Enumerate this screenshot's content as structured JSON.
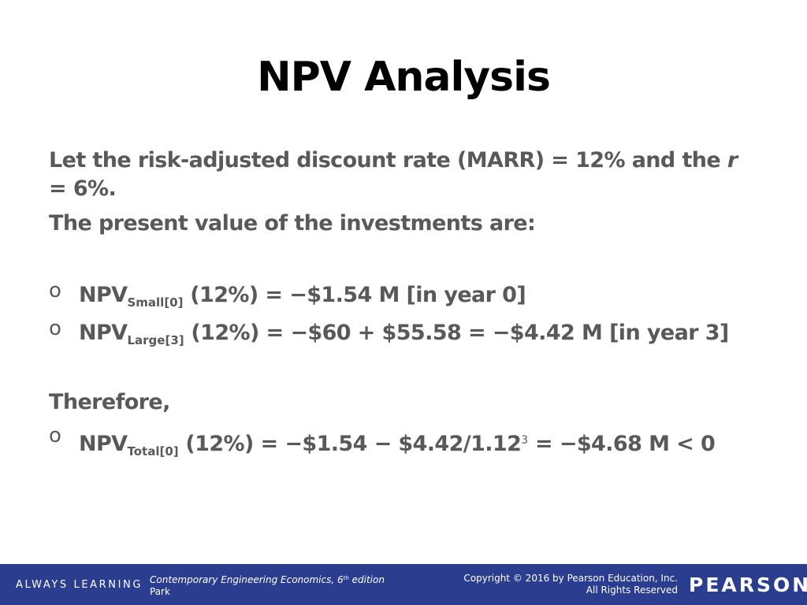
{
  "slide": {
    "title": "NPV Analysis",
    "intro_line1_prefix": "Let the risk-adjusted discount rate (MARR) = 12% and the ",
    "intro_line1_var": "r",
    "intro_line1_suffix": " = 6%.",
    "intro_line2": "The present value of the investments are:",
    "bullet_marker": "o",
    "bullets": [
      {
        "label": "NPV",
        "sub": "Small[0]",
        "text": " (12%) = −$1.54 M [in year 0]"
      },
      {
        "label": "NPV",
        "sub": "Large[3]",
        "text": " (12%) = −$60 + $55.58 = −$4.42 M [in year 3]"
      }
    ],
    "therefore": "Therefore,",
    "conclusion": {
      "label": "NPV",
      "sub": "Total[0]",
      "text_before_exp": " (12%) = −$1.54 − $4.42/1.12",
      "exp": "3",
      "text_after_exp": " = −$4.68 M < 0"
    }
  },
  "footer": {
    "tagline": "ALWAYS LEARNING",
    "book_title": "Contemporary Engineering Economics, 6",
    "book_edition_sup": "th",
    "book_edition_word": " edition",
    "author": "Park",
    "copyright_line1": "Copyright © 2016 by Pearson Education, Inc.",
    "copyright_line2": "All Rights Reserved",
    "logo": "PEARSON",
    "bar_color": "#2b3d8f"
  }
}
